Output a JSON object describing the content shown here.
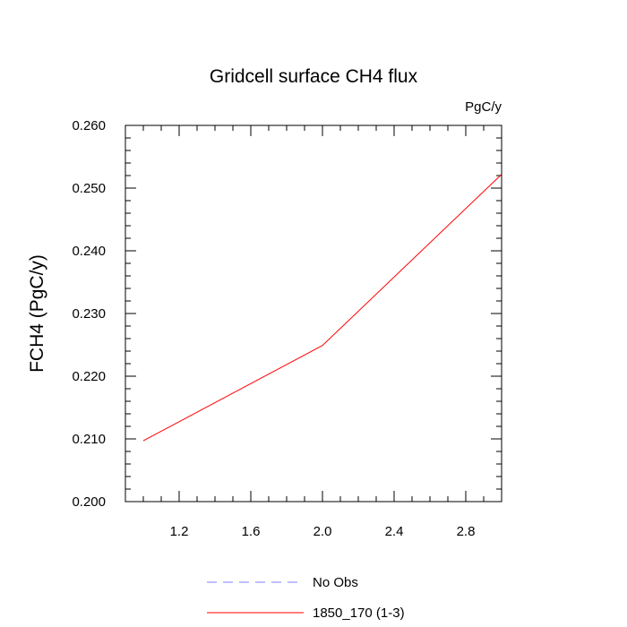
{
  "chart_data": {
    "type": "line",
    "title": "Gridcell surface CH4 flux",
    "units": "PgC/y",
    "ylabel": "FCH4  (PgC/y)",
    "xlabel": "",
    "xlim": [
      0.9,
      3.0
    ],
    "ylim": [
      0.2,
      0.26
    ],
    "xticks": [
      1.2,
      1.6,
      2.0,
      2.4,
      2.8
    ],
    "xtick_labels": [
      "1.2",
      "1.6",
      "2.0",
      "2.4",
      "2.8"
    ],
    "yticks": [
      0.2,
      0.21,
      0.22,
      0.23,
      0.24,
      0.25,
      0.26
    ],
    "ytick_labels": [
      "0.200",
      "0.210",
      "0.220",
      "0.230",
      "0.240",
      "0.250",
      "0.260"
    ],
    "grid": false,
    "legend_position": "bottom",
    "series": [
      {
        "name": "No Obs",
        "color": "#8080ff",
        "dashed": true,
        "x": [],
        "y": []
      },
      {
        "name": "1850_170 (1-3)",
        "color": "#ff0000",
        "dashed": false,
        "x": [
          1.0,
          2.0,
          3.0
        ],
        "y": [
          0.2097,
          0.2249,
          0.2522
        ]
      }
    ]
  }
}
